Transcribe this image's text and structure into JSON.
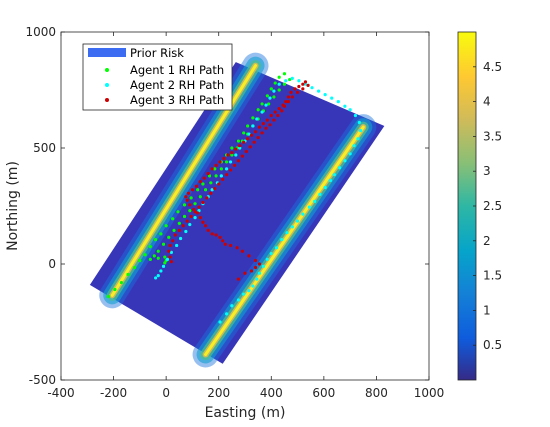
{
  "chart_data": {
    "type": "scatter",
    "title": "",
    "xlabel": "Easting (m)",
    "ylabel": "Northing (m)",
    "xlim": [
      -400,
      1000
    ],
    "ylim": [
      -500,
      1000
    ],
    "xticks": [
      -400,
      -200,
      0,
      200,
      400,
      600,
      800,
      1000
    ],
    "yticks": [
      -500,
      0,
      500,
      1000
    ],
    "grid": false,
    "legend_position": "top-left",
    "background_field": {
      "name": "Prior Risk",
      "type": "heatmap",
      "region_corners": [
        [
          -290,
          -90
        ],
        [
          265,
          870
        ],
        [
          830,
          595
        ],
        [
          215,
          -430
        ]
      ],
      "high_risk_bands": [
        {
          "from": [
            -205,
            -135
          ],
          "to": [
            340,
            855
          ]
        },
        {
          "from": [
            150,
            -390
          ],
          "to": [
            750,
            590
          ]
        }
      ],
      "color": "#3b6cf2"
    },
    "colorbar": {
      "ticks": [
        "0.5",
        "1",
        "1.5",
        "2",
        "2.5",
        "3",
        "3.5",
        "4",
        "4.5"
      ],
      "range": [
        0,
        5
      ],
      "colormap": "parula"
    },
    "series": [
      {
        "name": "Agent 1 RH Path",
        "color": "#00ff00",
        "marker": "dot",
        "points": [
          [
            -220,
            -140
          ],
          [
            -195,
            -110
          ],
          [
            -170,
            -80
          ],
          [
            -145,
            -45
          ],
          [
            -120,
            -15
          ],
          [
            -100,
            15
          ],
          [
            -80,
            40
          ],
          [
            -60,
            75
          ],
          [
            -40,
            105
          ],
          [
            -20,
            130
          ],
          [
            0,
            165
          ],
          [
            25,
            195
          ],
          [
            45,
            225
          ],
          [
            70,
            255
          ],
          [
            95,
            285
          ],
          [
            120,
            320
          ],
          [
            140,
            345
          ],
          [
            165,
            380
          ],
          [
            185,
            410
          ],
          [
            210,
            440
          ],
          [
            230,
            470
          ],
          [
            250,
            500
          ],
          [
            275,
            530
          ],
          [
            295,
            565
          ],
          [
            310,
            595
          ],
          [
            330,
            630
          ],
          [
            350,
            665
          ],
          [
            365,
            690
          ],
          [
            385,
            725
          ],
          [
            400,
            755
          ],
          [
            415,
            780
          ],
          [
            430,
            805
          ],
          [
            450,
            820
          ],
          [
            470,
            795
          ],
          [
            450,
            775
          ],
          [
            430,
            750
          ],
          [
            410,
            720
          ],
          [
            390,
            690
          ],
          [
            370,
            660
          ],
          [
            350,
            625
          ],
          [
            330,
            595
          ],
          [
            310,
            560
          ],
          [
            290,
            530
          ],
          [
            270,
            500
          ],
          [
            250,
            470
          ],
          [
            230,
            440
          ],
          [
            210,
            410
          ],
          [
            190,
            380
          ],
          [
            170,
            350
          ],
          [
            150,
            320
          ],
          [
            130,
            290
          ],
          [
            110,
            260
          ],
          [
            90,
            230
          ],
          [
            70,
            205
          ],
          [
            50,
            175
          ],
          [
            30,
            145
          ],
          [
            10,
            115
          ],
          [
            -10,
            85
          ],
          [
            -30,
            55
          ],
          [
            -45,
            35
          ],
          [
            -60,
            20
          ],
          [
            -30,
            25
          ],
          [
            -5,
            30
          ],
          [
            0,
            15
          ],
          [
            -5,
            5
          ]
        ]
      },
      {
        "name": "Agent 2 RH Path",
        "color": "#00ffff",
        "marker": "dot",
        "points": [
          [
            205,
            -250
          ],
          [
            230,
            -215
          ],
          [
            250,
            -180
          ],
          [
            275,
            -155
          ],
          [
            295,
            -130
          ],
          [
            315,
            -115
          ],
          [
            330,
            -95
          ],
          [
            345,
            -65
          ],
          [
            355,
            -40
          ],
          [
            370,
            -10
          ],
          [
            385,
            20
          ],
          [
            400,
            45
          ],
          [
            420,
            70
          ],
          [
            440,
            105
          ],
          [
            460,
            135
          ],
          [
            480,
            160
          ],
          [
            500,
            185
          ],
          [
            520,
            215
          ],
          [
            545,
            245
          ],
          [
            565,
            270
          ],
          [
            585,
            300
          ],
          [
            605,
            330
          ],
          [
            625,
            360
          ],
          [
            640,
            385
          ],
          [
            660,
            415
          ],
          [
            680,
            445
          ],
          [
            700,
            475
          ],
          [
            715,
            510
          ],
          [
            730,
            540
          ],
          [
            740,
            575
          ],
          [
            735,
            610
          ],
          [
            720,
            640
          ],
          [
            700,
            665
          ],
          [
            680,
            680
          ],
          [
            655,
            700
          ],
          [
            630,
            715
          ],
          [
            605,
            730
          ],
          [
            580,
            745
          ],
          [
            555,
            760
          ],
          [
            530,
            775
          ],
          [
            505,
            790
          ],
          [
            480,
            800
          ],
          [
            455,
            790
          ],
          [
            430,
            775
          ],
          [
            410,
            745
          ],
          [
            395,
            715
          ],
          [
            380,
            685
          ],
          [
            365,
            655
          ],
          [
            345,
            625
          ],
          [
            330,
            595
          ],
          [
            315,
            560
          ],
          [
            300,
            530
          ],
          [
            280,
            500
          ],
          [
            265,
            470
          ],
          [
            245,
            440
          ],
          [
            230,
            410
          ],
          [
            210,
            380
          ],
          [
            195,
            350
          ],
          [
            175,
            320
          ],
          [
            160,
            290
          ],
          [
            140,
            260
          ],
          [
            125,
            230
          ],
          [
            110,
            200
          ],
          [
            90,
            170
          ],
          [
            75,
            140
          ],
          [
            55,
            110
          ],
          [
            40,
            80
          ],
          [
            20,
            50
          ],
          [
            5,
            20
          ],
          [
            -10,
            -10
          ],
          [
            -20,
            -30
          ],
          [
            -30,
            -50
          ],
          [
            -40,
            -60
          ]
        ]
      },
      {
        "name": "Agent 3 RH Path",
        "color": "#cc0000",
        "marker": "dot",
        "points": [
          [
            275,
            -65
          ],
          [
            300,
            -40
          ],
          [
            325,
            -30
          ],
          [
            340,
            -15
          ],
          [
            355,
            0
          ],
          [
            340,
            15
          ],
          [
            315,
            35
          ],
          [
            290,
            55
          ],
          [
            270,
            70
          ],
          [
            245,
            80
          ],
          [
            225,
            85
          ],
          [
            215,
            100
          ],
          [
            205,
            115
          ],
          [
            190,
            125
          ],
          [
            175,
            130
          ],
          [
            160,
            145
          ],
          [
            150,
            165
          ],
          [
            140,
            180
          ],
          [
            130,
            200
          ],
          [
            120,
            220
          ],
          [
            105,
            235
          ],
          [
            90,
            255
          ],
          [
            80,
            275
          ],
          [
            75,
            290
          ],
          [
            85,
            305
          ],
          [
            100,
            320
          ],
          [
            115,
            335
          ],
          [
            130,
            355
          ],
          [
            145,
            370
          ],
          [
            160,
            390
          ],
          [
            175,
            410
          ],
          [
            190,
            425
          ],
          [
            205,
            440
          ],
          [
            220,
            455
          ],
          [
            235,
            470
          ],
          [
            250,
            480
          ],
          [
            265,
            495
          ],
          [
            280,
            510
          ],
          [
            295,
            525
          ],
          [
            310,
            540
          ],
          [
            325,
            555
          ],
          [
            340,
            570
          ],
          [
            355,
            590
          ],
          [
            370,
            605
          ],
          [
            385,
            620
          ],
          [
            400,
            640
          ],
          [
            415,
            655
          ],
          [
            430,
            670
          ],
          [
            445,
            685
          ],
          [
            455,
            700
          ],
          [
            465,
            720
          ],
          [
            475,
            740
          ],
          [
            490,
            755
          ],
          [
            505,
            765
          ],
          [
            520,
            775
          ],
          [
            530,
            785
          ],
          [
            540,
            770
          ],
          [
            520,
            755
          ],
          [
            500,
            740
          ],
          [
            480,
            720
          ],
          [
            465,
            700
          ],
          [
            450,
            680
          ],
          [
            440,
            660
          ],
          [
            425,
            640
          ],
          [
            410,
            620
          ],
          [
            395,
            600
          ],
          [
            380,
            585
          ],
          [
            365,
            565
          ],
          [
            350,
            545
          ],
          [
            335,
            525
          ],
          [
            320,
            505
          ],
          [
            305,
            485
          ],
          [
            290,
            465
          ],
          [
            275,
            445
          ],
          [
            260,
            425
          ],
          [
            245,
            405
          ],
          [
            230,
            385
          ],
          [
            215,
            365
          ],
          [
            200,
            345
          ],
          [
            185,
            325
          ],
          [
            170,
            305
          ],
          [
            155,
            285
          ],
          [
            140,
            265
          ],
          [
            125,
            245
          ],
          [
            110,
            225
          ],
          [
            95,
            205
          ],
          [
            80,
            185
          ],
          [
            65,
            165
          ],
          [
            50,
            145
          ],
          [
            35,
            125
          ],
          [
            25,
            100
          ],
          [
            15,
            80
          ],
          [
            10,
            55
          ],
          [
            15,
            30
          ],
          [
            20,
            10
          ]
        ]
      }
    ]
  }
}
